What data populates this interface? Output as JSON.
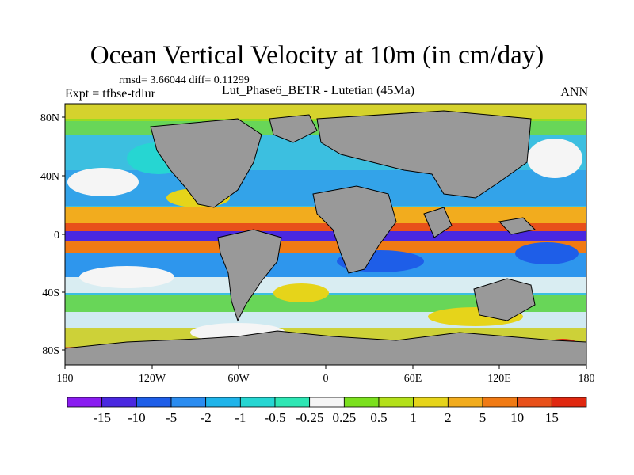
{
  "title": "Ocean Vertical Velocity at 10m (in cm/day)",
  "stats": "rmsd= 3.66044 diff= 0.11299",
  "experiment": "Expt = tfbse-tdlur",
  "subtitle": "Lut_Phase6_BETR - Lutetian (45Ma)",
  "season": "ANN",
  "map": {
    "lon_ticks": [
      "180",
      "120W",
      "60W",
      "0",
      "60E",
      "120E",
      "180"
    ],
    "lat_ticks": [
      "80N",
      "40N",
      "0",
      "40S",
      "80S"
    ],
    "land_color": "#999999",
    "ocean_background": "#f2f2f2"
  },
  "colorbar": {
    "levels": [
      "-15",
      "-10",
      "-5",
      "-2",
      "-1",
      "-0.5",
      "-0.25",
      "0.25",
      "0.5",
      "1",
      "2",
      "5",
      "10",
      "15"
    ],
    "colors": [
      "#8a1cf0",
      "#4a28e0",
      "#1e5ee8",
      "#2b8cf0",
      "#1fb4ea",
      "#26d6d2",
      "#2ee6b4",
      "#f5f5f5",
      "#7be01e",
      "#b3e01a",
      "#e6d41a",
      "#f2ac1e",
      "#f07a14",
      "#e8501a",
      "#e02810"
    ]
  }
}
